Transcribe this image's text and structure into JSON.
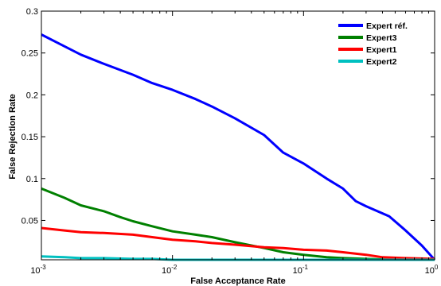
{
  "chart_data": {
    "type": "line",
    "xlabel": "False Acceptance Rate",
    "ylabel": "False Rejection Rate",
    "xscale": "log",
    "xlim": [
      0.001,
      1
    ],
    "ylim": [
      0.003,
      0.3
    ],
    "grid": false,
    "legend_position": "top-right",
    "x_ticks": [
      {
        "value": 0.001,
        "base": "10",
        "exp": "-3"
      },
      {
        "value": 0.01,
        "base": "10",
        "exp": "-2"
      },
      {
        "value": 0.1,
        "base": "10",
        "exp": "-1"
      },
      {
        "value": 1,
        "base": "10",
        "exp": "0"
      }
    ],
    "y_ticks": [
      {
        "value": 0.05,
        "label": "0.05"
      },
      {
        "value": 0.1,
        "label": "0.1"
      },
      {
        "value": 0.15,
        "label": "0.15"
      },
      {
        "value": 0.2,
        "label": "0.2"
      },
      {
        "value": 0.25,
        "label": "0.25"
      },
      {
        "value": 0.3,
        "label": "0.3"
      }
    ],
    "series": [
      {
        "name": "Expert réf.",
        "color": "#0000ff",
        "points": [
          [
            0.001,
            0.272
          ],
          [
            0.0015,
            0.258
          ],
          [
            0.002,
            0.248
          ],
          [
            0.003,
            0.237
          ],
          [
            0.005,
            0.224
          ],
          [
            0.007,
            0.214
          ],
          [
            0.01,
            0.206
          ],
          [
            0.015,
            0.195
          ],
          [
            0.02,
            0.186
          ],
          [
            0.03,
            0.172
          ],
          [
            0.05,
            0.152
          ],
          [
            0.07,
            0.131
          ],
          [
            0.1,
            0.118
          ],
          [
            0.15,
            0.1
          ],
          [
            0.2,
            0.088
          ],
          [
            0.25,
            0.073
          ],
          [
            0.3,
            0.067
          ],
          [
            0.45,
            0.055
          ],
          [
            0.6,
            0.038
          ],
          [
            0.8,
            0.02
          ],
          [
            1,
            0.003
          ]
        ]
      },
      {
        "name": "Expert3",
        "color": "#008000",
        "points": [
          [
            0.001,
            0.088
          ],
          [
            0.0015,
            0.077
          ],
          [
            0.002,
            0.068
          ],
          [
            0.003,
            0.061
          ],
          [
            0.004,
            0.054
          ],
          [
            0.005,
            0.049
          ],
          [
            0.007,
            0.043
          ],
          [
            0.01,
            0.037
          ],
          [
            0.015,
            0.033
          ],
          [
            0.02,
            0.03
          ],
          [
            0.03,
            0.024
          ],
          [
            0.05,
            0.017
          ],
          [
            0.07,
            0.012
          ],
          [
            0.1,
            0.009
          ],
          [
            0.15,
            0.006
          ],
          [
            0.2,
            0.005
          ],
          [
            0.3,
            0.004
          ],
          [
            0.5,
            0.003
          ],
          [
            1,
            0.003
          ]
        ]
      },
      {
        "name": "Expert1",
        "color": "#ff0000",
        "points": [
          [
            0.001,
            0.041
          ],
          [
            0.0015,
            0.038
          ],
          [
            0.002,
            0.036
          ],
          [
            0.003,
            0.035
          ],
          [
            0.005,
            0.033
          ],
          [
            0.007,
            0.03
          ],
          [
            0.01,
            0.027
          ],
          [
            0.015,
            0.025
          ],
          [
            0.02,
            0.023
          ],
          [
            0.03,
            0.021
          ],
          [
            0.05,
            0.018
          ],
          [
            0.07,
            0.017
          ],
          [
            0.1,
            0.015
          ],
          [
            0.15,
            0.014
          ],
          [
            0.2,
            0.012
          ],
          [
            0.3,
            0.009
          ],
          [
            0.4,
            0.006
          ],
          [
            0.6,
            0.005
          ],
          [
            1,
            0.004
          ]
        ]
      },
      {
        "name": "Expert2",
        "color": "#00c0c0",
        "points": [
          [
            0.001,
            0.007
          ],
          [
            0.0015,
            0.006
          ],
          [
            0.002,
            0.005
          ],
          [
            0.003,
            0.005
          ],
          [
            0.005,
            0.004
          ],
          [
            0.007,
            0.004
          ],
          [
            0.01,
            0.003
          ],
          [
            0.05,
            0.003
          ],
          [
            1,
            0.003
          ]
        ]
      }
    ]
  }
}
